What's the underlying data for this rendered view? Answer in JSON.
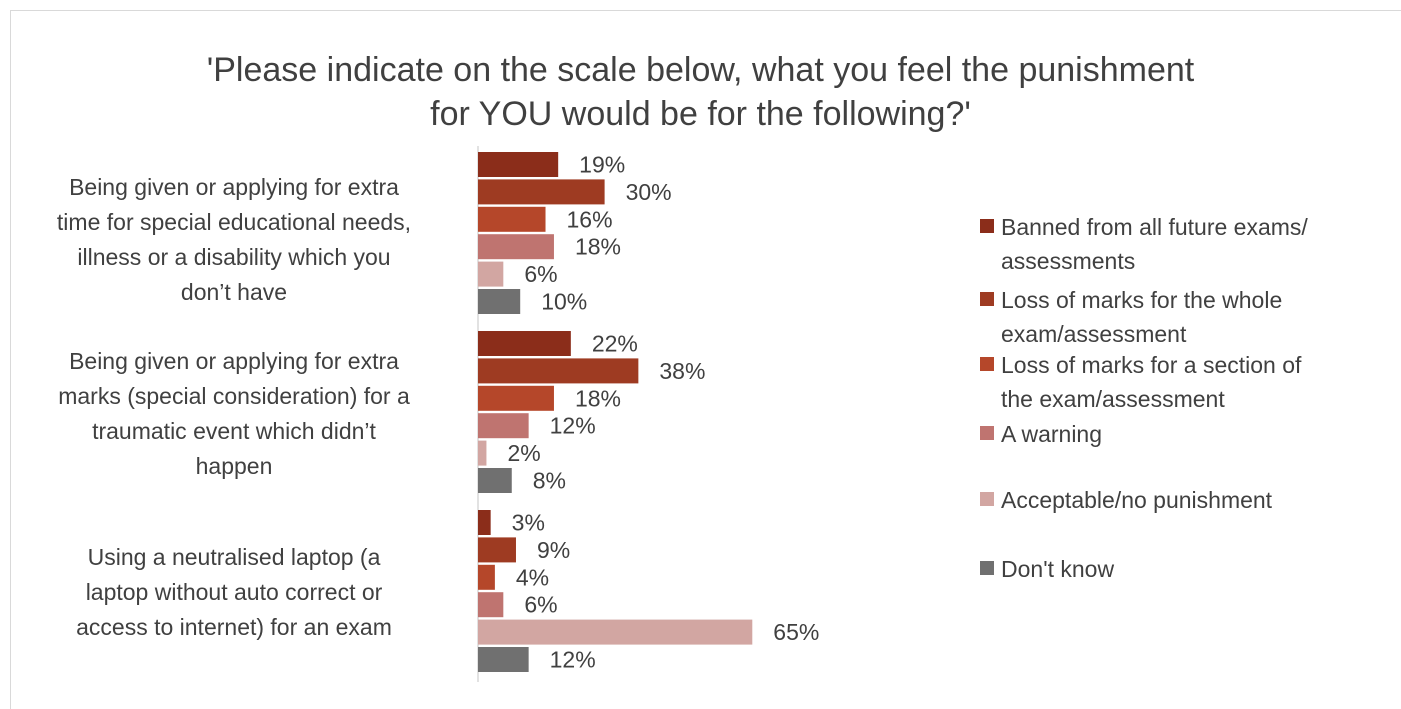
{
  "chart_data": {
    "type": "bar",
    "orientation": "horizontal",
    "title": [
      "'Please indicate on the scale below, what you feel the punishment",
      "for YOU would be for the following?'"
    ],
    "categories": [
      [
        "Being given or applying for extra",
        "time for special educational needs,",
        "illness or a disability which you",
        "don’t have"
      ],
      [
        "Being given or applying for extra",
        "marks (special consideration) for a",
        "traumatic event which didn’t",
        "happen"
      ],
      [
        "Using a neutralised laptop (a",
        "laptop without auto correct or",
        "access to internet) for an exam"
      ]
    ],
    "series": [
      {
        "name": [
          "Banned from all future exams/",
          "assessments"
        ],
        "color": "#8b2d1a",
        "values": [
          19,
          22,
          3
        ]
      },
      {
        "name": [
          "Loss of marks for the whole",
          "exam/assessment"
        ],
        "color": "#9e3b22",
        "values": [
          30,
          38,
          9
        ]
      },
      {
        "name": [
          "Loss of marks for a section of",
          "the exam/assessment"
        ],
        "color": "#b5472a",
        "values": [
          16,
          18,
          4
        ]
      },
      {
        "name": [
          "A warning"
        ],
        "color": "#bf7470",
        "values": [
          18,
          12,
          6
        ]
      },
      {
        "name": [
          "Acceptable/no punishment"
        ],
        "color": "#d2a6a2",
        "values": [
          6,
          2,
          65
        ]
      },
      {
        "name": [
          "Don't know"
        ],
        "color": "#707070",
        "values": [
          10,
          8,
          12
        ]
      }
    ],
    "value_suffix": "%",
    "xlim": [
      0,
      100
    ],
    "grid": false,
    "legend_position": "right"
  }
}
